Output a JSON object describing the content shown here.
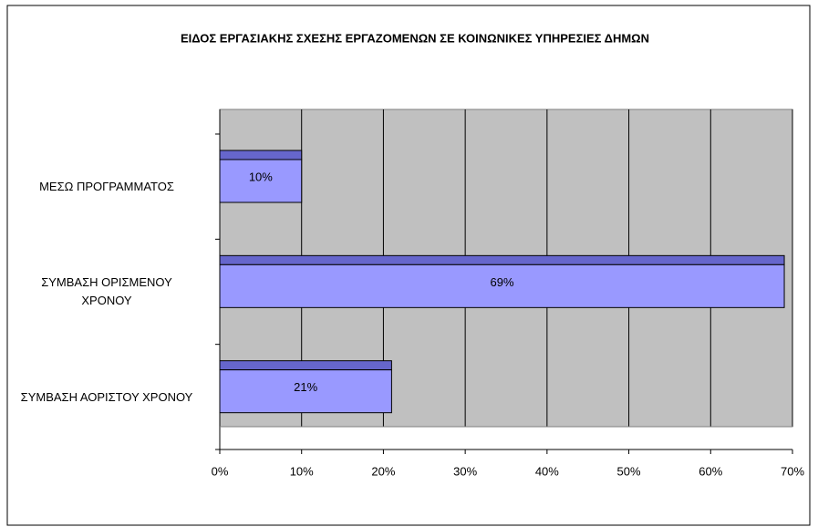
{
  "chart_data": {
    "type": "bar",
    "orientation": "horizontal",
    "title": "ΕΙΔΟΣ ΕΡΓΑΣΙΑΚΗΣ ΣΧΕΣΗΣ ΕΡΓΑΖΟΜΕΝΩΝ ΣΕ ΚΟΙΝΩΝΙΚΕΣ ΥΠΗΡΕΣΙΕΣ ΔΗΜΩΝ",
    "categories": [
      "ΜΕΣΩ ΠΡΟΓΡΑΜΜΑΤΟΣ",
      "ΣΥΜΒΑΣΗ ΟΡΙΣΜΕΝΟΥ\nΧΡΟΝΟΥ",
      "ΣΥΜΒΑΣΗ ΑΟΡΙΣΤΟΥ ΧΡΟΝΟΥ"
    ],
    "values": [
      10,
      69,
      21
    ],
    "value_labels": [
      "10%",
      "69%",
      "21%"
    ],
    "color": "#9999ff",
    "top_color": "#6666cc",
    "xlim": [
      0,
      70
    ],
    "xticks": [
      {
        "value": 0,
        "label": "0%"
      },
      {
        "value": 10,
        "label": "10%"
      },
      {
        "value": 20,
        "label": "20%"
      },
      {
        "value": 30,
        "label": "30%"
      },
      {
        "value": 40,
        "label": "40%"
      },
      {
        "value": 50,
        "label": "50%"
      },
      {
        "value": 60,
        "label": "60%"
      },
      {
        "value": 70,
        "label": "70%"
      }
    ],
    "grid": true
  }
}
